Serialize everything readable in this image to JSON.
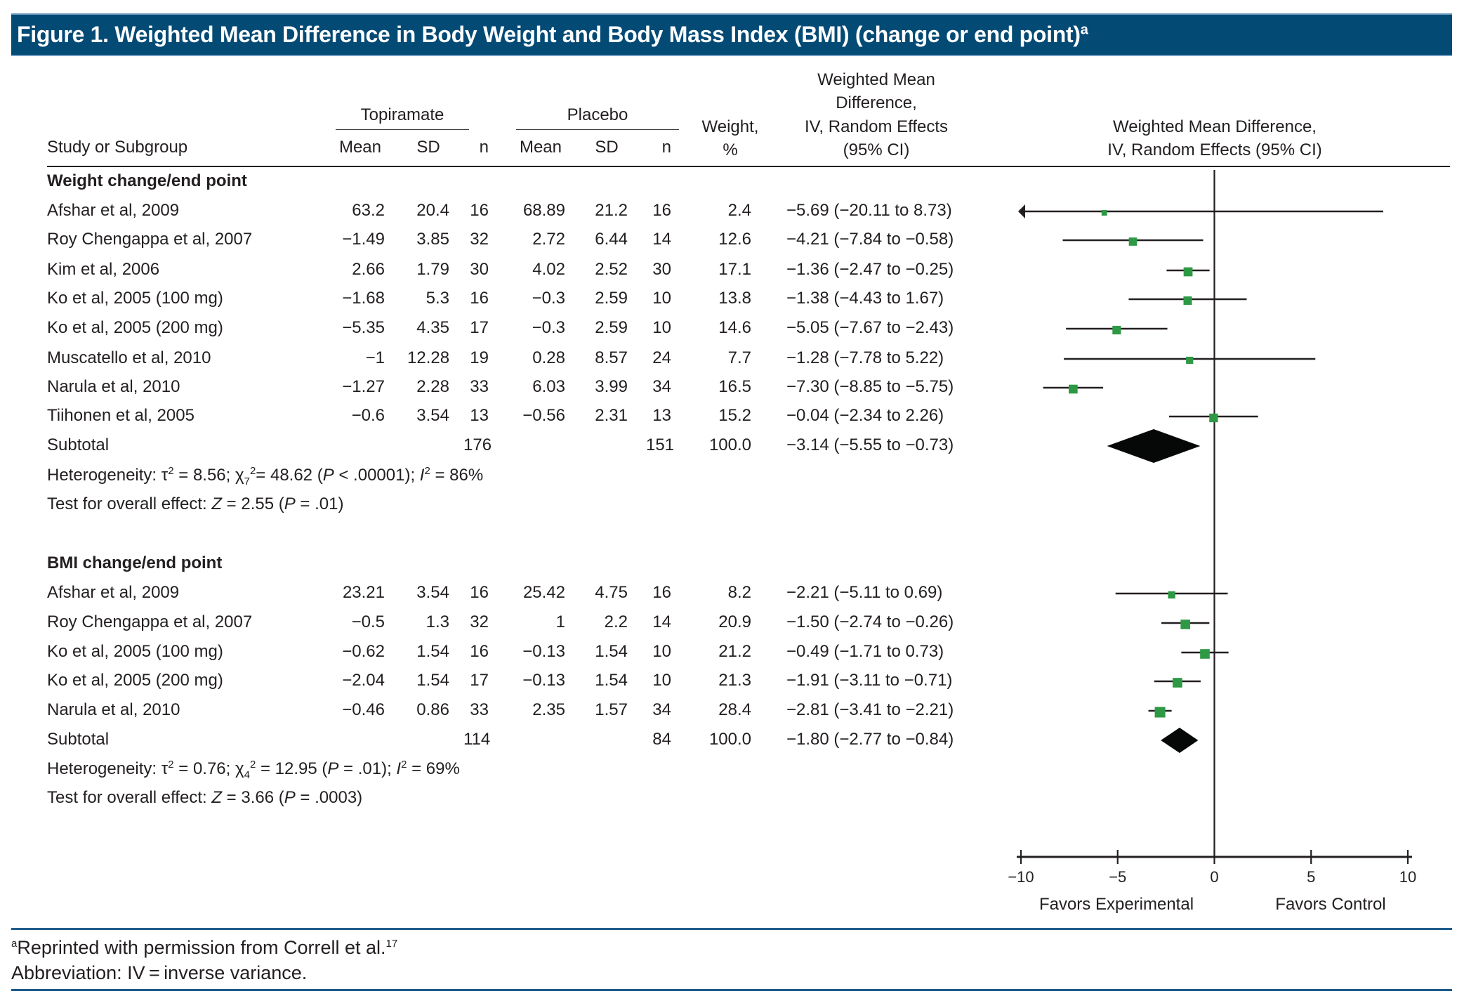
{
  "title": {
    "text": "Figure 1. Weighted Mean Difference in Body Weight and Body Mass Index (BMI) (change or end point)",
    "superscript": "a"
  },
  "header": {
    "study_col": "Study or Subgroup",
    "group1": "Topiramate",
    "group2": "Placebo",
    "mean": "Mean",
    "sd": "SD",
    "n": "n",
    "weight_line1": "Weight,",
    "weight_line2": "%",
    "wmd_line1": "Weighted Mean",
    "wmd_line2": "Difference,",
    "wmd_line3": "IV, Random Effects",
    "wmd_line4": "(95% CI)",
    "plot_line1": "Weighted Mean Difference,",
    "plot_line2": "IV, Random Effects (95% CI)"
  },
  "sections": [
    {
      "heading": "Weight change/end point",
      "rows": [
        {
          "study": "Afshar et al, 2009",
          "t_mean": "63.2",
          "t_sd": "20.4",
          "t_n": "16",
          "p_mean": "68.89",
          "p_sd": "21.2",
          "p_n": "16",
          "weight": "2.4",
          "ci": "−5.69 (−20.11 to 8.73)"
        },
        {
          "study": "Roy Chengappa et al, 2007",
          "t_mean": "−1.49",
          "t_sd": "3.85",
          "t_n": "32",
          "p_mean": "2.72",
          "p_sd": "6.44",
          "p_n": "14",
          "weight": "12.6",
          "ci": "−4.21 (−7.84 to −0.58)"
        },
        {
          "study": "Kim et al, 2006",
          "t_mean": "2.66",
          "t_sd": "1.79",
          "t_n": "30",
          "p_mean": "4.02",
          "p_sd": "2.52",
          "p_n": "30",
          "weight": "17.1",
          "ci": "−1.36 (−2.47 to −0.25)"
        },
        {
          "study": "Ko et al, 2005 (100 mg)",
          "t_mean": "−1.68",
          "t_sd": "5.3",
          "t_n": "16",
          "p_mean": "−0.3",
          "p_sd": "2.59",
          "p_n": "10",
          "weight": "13.8",
          "ci": "−1.38 (−4.43 to 1.67)"
        },
        {
          "study": "Ko et al, 2005 (200 mg)",
          "t_mean": "−5.35",
          "t_sd": "4.35",
          "t_n": "17",
          "p_mean": "−0.3",
          "p_sd": "2.59",
          "p_n": "10",
          "weight": "14.6",
          "ci": "−5.05 (−7.67 to −2.43)"
        },
        {
          "study": "Muscatello et al, 2010",
          "t_mean": "−1",
          "t_sd": "12.28",
          "t_n": "19",
          "p_mean": "0.28",
          "p_sd": "8.57",
          "p_n": "24",
          "weight": "7.7",
          "ci": "−1.28 (−7.78 to 5.22)"
        },
        {
          "study": "Narula et al, 2010",
          "t_mean": "−1.27",
          "t_sd": "2.28",
          "t_n": "33",
          "p_mean": "6.03",
          "p_sd": "3.99",
          "p_n": "34",
          "weight": "16.5",
          "ci": "−7.30 (−8.85 to −5.75)"
        },
        {
          "study": "Tiihonen et al, 2005",
          "t_mean": "−0.6",
          "t_sd": "3.54",
          "t_n": "13",
          "p_mean": "−0.56",
          "p_sd": "2.31",
          "p_n": "13",
          "weight": "15.2",
          "ci": "−0.04 (−2.34 to 2.26)"
        }
      ],
      "subtotal": {
        "label": "Subtotal",
        "t_n": "176",
        "p_n": "151",
        "weight": "100.0",
        "ci": "−3.14 (−5.55 to −0.73)"
      },
      "heterogeneity": {
        "prefix": "Heterogeneity: τ",
        "tau_exp": "2",
        "tau_val": " = 8.56; χ",
        "chi_sub": "7",
        "chi_exp": "2",
        "chi_val": "= 48.62 (",
        "p_label": "P",
        "p_val": " < .00001); ",
        "i_label": "I",
        "i_exp": "2",
        "i_val": "  = 86%"
      },
      "overall": {
        "prefix": "Test for overall effect: ",
        "z_label": "Z",
        "z_val": " = 2.55 (",
        "p_label": "P",
        "p_val": " = .01)"
      }
    },
    {
      "heading": "BMI change/end point",
      "rows": [
        {
          "study": "Afshar et al, 2009",
          "t_mean": "23.21",
          "t_sd": "3.54",
          "t_n": "16",
          "p_mean": "25.42",
          "p_sd": "4.75",
          "p_n": "16",
          "weight": "8.2",
          "ci": "−2.21 (−5.11 to 0.69)"
        },
        {
          "study": "Roy Chengappa et al, 2007",
          "t_mean": "−0.5",
          "t_sd": "1.3",
          "t_n": "32",
          "p_mean": "1",
          "p_sd": "2.2",
          "p_n": "14",
          "weight": "20.9",
          "ci": "−1.50 (−2.74 to −0.26)"
        },
        {
          "study": "Ko et al, 2005 (100 mg)",
          "t_mean": "−0.62",
          "t_sd": "1.54",
          "t_n": "16",
          "p_mean": "−0.13",
          "p_sd": "1.54",
          "p_n": "10",
          "weight": "21.2",
          "ci": "−0.49 (−1.71 to 0.73)"
        },
        {
          "study": "Ko et al, 2005 (200 mg)",
          "t_mean": "−2.04",
          "t_sd": "1.54",
          "t_n": "17",
          "p_mean": "−0.13",
          "p_sd": "1.54",
          "p_n": "10",
          "weight": "21.3",
          "ci": "−1.91 (−3.11 to −0.71)"
        },
        {
          "study": "Narula et al, 2010",
          "t_mean": "−0.46",
          "t_sd": "0.86",
          "t_n": "33",
          "p_mean": "2.35",
          "p_sd": "1.57",
          "p_n": "34",
          "weight": "28.4",
          "ci": "−2.81 (−3.41 to −2.21)"
        }
      ],
      "subtotal": {
        "label": "Subtotal",
        "t_n": "114",
        "p_n": "84",
        "weight": "100.0",
        "ci": "−1.80 (−2.77 to −0.84)"
      },
      "heterogeneity": {
        "prefix": "Heterogeneity: τ",
        "tau_exp": "2",
        "tau_val": " = 0.76; χ",
        "chi_sub": "4",
        "chi_exp": "2",
        "chi_val": " = 12.95 (",
        "p_label": "P",
        "p_val": " = .01); ",
        "i_label": "I",
        "i_exp": "2",
        "i_val": " = 69%"
      },
      "overall": {
        "prefix": "Test for overall effect: ",
        "z_label": "Z",
        "z_val": " = 3.66 (",
        "p_label": "P",
        "p_val": " = .0003)"
      }
    }
  ],
  "footnotes": {
    "note_a_marker": "a",
    "note_a": "Reprinted with permission from Correll et al.",
    "note_a_ref": "17",
    "abbreviation": "Abbreviation: IV = inverse variance."
  },
  "colors": {
    "title_bg": "#034a75",
    "rule_blue": "#1f5c8c",
    "marker_green": "#2e9945",
    "diamond": "#050807",
    "line": "#231f20"
  },
  "chart_data": {
    "type": "forest",
    "title": "Weighted Mean Difference, IV, Random Effects (95% CI)",
    "xlim": [
      -10,
      10
    ],
    "xticks": [
      -10,
      -5,
      0,
      5,
      10
    ],
    "xtick_labels": [
      "−10",
      "−5",
      "0",
      "5",
      "10"
    ],
    "xlabel_left": "Favors Experimental",
    "xlabel_right": "Favors Control",
    "reference_line": 0,
    "groups": [
      {
        "name": "Weight change/end point",
        "studies": [
          {
            "label": "Afshar et al, 2009",
            "estimate": -5.69,
            "lower": -20.11,
            "upper": 8.73,
            "weight": 2.4,
            "clipped_left": true
          },
          {
            "label": "Roy Chengappa et al, 2007",
            "estimate": -4.21,
            "lower": -7.84,
            "upper": -0.58,
            "weight": 12.6
          },
          {
            "label": "Kim et al, 2006",
            "estimate": -1.36,
            "lower": -2.47,
            "upper": -0.25,
            "weight": 17.1
          },
          {
            "label": "Ko et al, 2005 (100 mg)",
            "estimate": -1.38,
            "lower": -4.43,
            "upper": 1.67,
            "weight": 13.8
          },
          {
            "label": "Ko et al, 2005 (200 mg)",
            "estimate": -5.05,
            "lower": -7.67,
            "upper": -2.43,
            "weight": 14.6
          },
          {
            "label": "Muscatello et al, 2010",
            "estimate": -1.28,
            "lower": -7.78,
            "upper": 5.22,
            "weight": 7.7
          },
          {
            "label": "Narula et al, 2010",
            "estimate": -7.3,
            "lower": -8.85,
            "upper": -5.75,
            "weight": 16.5
          },
          {
            "label": "Tiihonen et al, 2005",
            "estimate": -0.04,
            "lower": -2.34,
            "upper": 2.26,
            "weight": 15.2
          }
        ],
        "summary": {
          "estimate": -3.14,
          "lower": -5.55,
          "upper": -0.73
        }
      },
      {
        "name": "BMI change/end point",
        "studies": [
          {
            "label": "Afshar et al, 2009",
            "estimate": -2.21,
            "lower": -5.11,
            "upper": 0.69,
            "weight": 8.2
          },
          {
            "label": "Roy Chengappa et al, 2007",
            "estimate": -1.5,
            "lower": -2.74,
            "upper": -0.26,
            "weight": 20.9
          },
          {
            "label": "Ko et al, 2005 (100 mg)",
            "estimate": -0.49,
            "lower": -1.71,
            "upper": 0.73,
            "weight": 21.2
          },
          {
            "label": "Ko et al, 2005 (200 mg)",
            "estimate": -1.91,
            "lower": -3.11,
            "upper": -0.71,
            "weight": 21.3
          },
          {
            "label": "Narula et al, 2010",
            "estimate": -2.81,
            "lower": -3.41,
            "upper": -2.21,
            "weight": 28.4
          }
        ],
        "summary": {
          "estimate": -1.8,
          "lower": -2.77,
          "upper": -0.84
        }
      }
    ]
  }
}
